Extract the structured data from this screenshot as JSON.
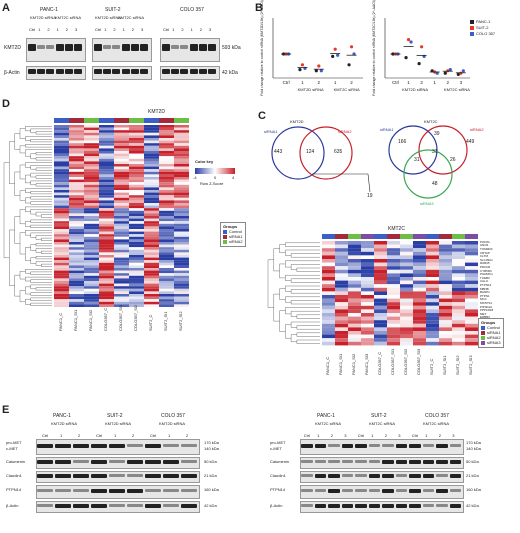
{
  "panels": {
    "A": {
      "letter": "A",
      "cell_lines": [
        "PANC-1",
        "SUIT-2",
        "COLO 357"
      ],
      "sirna_label": "KMT2D siRNA",
      "sirna_label2": "KMT2C siRNA",
      "lanes": [
        "Ctrl",
        "1",
        "2",
        "1",
        "2",
        "3"
      ],
      "row_labels": [
        "KMT2D",
        "β-Actin"
      ],
      "sizes": [
        "593 kDa",
        "42 kDa"
      ]
    },
    "B": {
      "letter": "B",
      "legend": [
        {
          "name": "PANC-1",
          "color": "#222222"
        },
        {
          "name": "SUIT-2",
          "color": "#e8382a"
        },
        {
          "name": "COLO 357",
          "color": "#3a5fc8"
        }
      ],
      "ylabel_left": "Fold change relative to control siRNA (KMT2D/18s) (2^-ΔΔCt)",
      "ylabel_right": "Fold change relative to control siRNA (KMT2C/18s) (2^-ΔΔCt)",
      "xticks_left": [
        "Ctrl",
        "1",
        "2",
        "1",
        "2"
      ],
      "xgroups_left": [
        "KMT2D siRNA",
        "KMT2C siRNA"
      ],
      "xticks_right": [
        "Ctrl",
        "1",
        "2",
        "1",
        "2",
        "3"
      ],
      "xgroups_right": [
        "KMT2D siRNA",
        "KMT2C siRNA"
      ]
    },
    "C": {
      "letter": "C",
      "venn_left": {
        "title": "KMT2D",
        "a": "siRNA1",
        "b": "siRNA2",
        "only_a": "443",
        "both": "124",
        "only_b": "635",
        "arrow_value": "19"
      },
      "venn_right": {
        "title": "KMT2C",
        "a": "siRNA1",
        "b": "siRNA2",
        "c": "siRNA3",
        "v1": "166",
        "v2": "39",
        "v3": "449",
        "v4": "31",
        "v5": "31",
        "v6": "26",
        "v7": "48"
      },
      "heatmap_title": "KMT2C",
      "genes": [
        "PODXL",
        "ANO6",
        "TOMM20",
        "CRTAP",
        "CLTM",
        "SLC39A1",
        "RAB45",
        "PDCD6",
        "CYB5R3",
        "PGRMC1",
        "TCEB3",
        "CALU",
        "PTPN14",
        "MBNB",
        "BANP1",
        "PTPN1",
        "MCC",
        "MSTPS1",
        "PIP4K2A",
        "PPP1R18",
        "MET",
        "ERBB3",
        "CTPS1",
        "MSN",
        "TMP1",
        "TRPS1",
        "RBP1",
        "PLOD1",
        "CKB"
      ],
      "groups_title": "Groups",
      "groups": [
        {
          "name": "Control",
          "color": "#3a5fc8"
        },
        {
          "name": "siRNA1",
          "color": "#a22a3a"
        },
        {
          "name": "siRNA2",
          "color": "#6cbe45"
        },
        {
          "name": "siRNA3",
          "color": "#7b4ea3"
        }
      ],
      "col_labels": [
        "PANC1_C",
        "PANC1_SI1",
        "PANC1_SI2",
        "PANC1_SI3",
        "COLO357_C",
        "COLO357_SI1",
        "COLO357_SI2",
        "COLO357_SI3",
        "SUIT2_C",
        "SUIT2_SI1",
        "SUIT2_SI2",
        "SUIT2_SI3"
      ]
    },
    "D": {
      "letter": "D",
      "heatmap_title": "KMT2D",
      "color_key_title": "Color key",
      "color_key_ticks": [
        "-4",
        "0",
        "4"
      ],
      "color_key_label": "Row Z-Score",
      "groups_title": "Groups",
      "groups": [
        {
          "name": "Control",
          "color": "#3a5fc8"
        },
        {
          "name": "siRNA1",
          "color": "#a22a3a"
        },
        {
          "name": "siRNA2",
          "color": "#6cbe45"
        }
      ],
      "col_labels": [
        "PANC1_C",
        "PANC1_SI1",
        "PANC1_SI2",
        "COLO357_C",
        "COLO357_SI1",
        "COLO357_SI2",
        "SUIT2_C",
        "SUIT2_SI1",
        "SUIT2_SI2"
      ]
    },
    "E": {
      "letter": "E",
      "left": {
        "cell_lines": [
          "PANC-1",
          "SUIT-2",
          "COLO 357"
        ],
        "sirna": [
          "KMT2D siRNA",
          "KMT2D siRNA",
          "KMT2D siRNA"
        ],
        "lanes": [
          "Ctrl",
          "1",
          "2",
          "Ctrl",
          "1",
          "2",
          "Ctrl",
          "1",
          "2"
        ],
        "rows": [
          "pro-MET",
          "c-MET",
          "Calumenin",
          "Claudin1",
          "PTPN14",
          "β-Actin"
        ],
        "sizes": [
          "170 kDa",
          "140 kDa",
          "50 kDa",
          "21 kDa",
          "160 kDa",
          "42 kDa"
        ]
      },
      "right": {
        "cell_lines": [
          "PANC-1",
          "SUIT-2",
          "COLO 357"
        ],
        "sirna": [
          "KMT2C siRNA",
          "KMT2C siRNA",
          "KMT2C siRNA"
        ],
        "lanes": [
          "Ctrl",
          "1",
          "2",
          "3",
          "Ctrl",
          "1",
          "2",
          "3",
          "Ctrl",
          "1",
          "2",
          "3"
        ],
        "rows": [
          "pro-MET",
          "c-MET",
          "Calumenin",
          "Claudin1",
          "PTPN14",
          "β-Actin"
        ],
        "sizes": [
          "170 kDa",
          "140 kDa",
          "50 kDa",
          "21 kDa",
          "160 kDa",
          "42 kDa"
        ]
      }
    }
  },
  "chart_data": [
    {
      "type": "scatter",
      "title": "",
      "xlabel": "",
      "ylabel": "Fold change relative to control siRNA (KMT2D/18s) (2^-ΔΔCt)",
      "categories": [
        "Ctrl",
        "KMT2D 1",
        "KMT2D 2",
        "KMT2C 1",
        "KMT2C 2"
      ],
      "ylim": [
        0,
        2.5
      ],
      "series": [
        {
          "name": "PANC-1",
          "values": [
            1.0,
            0.35,
            0.3,
            0.9,
            0.55
          ]
        },
        {
          "name": "SUIT-2",
          "values": [
            1.0,
            0.55,
            0.5,
            1.2,
            1.3
          ]
        },
        {
          "name": "COLO 357",
          "values": [
            1.0,
            0.4,
            0.3,
            0.95,
            1.0
          ]
        }
      ]
    },
    {
      "type": "scatter",
      "title": "",
      "xlabel": "",
      "ylabel": "Fold change relative to control siRNA (KMT2C/18s) (2^-ΔΔCt)",
      "categories": [
        "Ctrl",
        "KMT2D 1",
        "KMT2D 2",
        "KMT2C 1",
        "KMT2C 2",
        "KMT2C 3"
      ],
      "ylim": [
        0,
        2.5
      ],
      "series": [
        {
          "name": "PANC-1",
          "values": [
            1.0,
            0.85,
            0.6,
            0.3,
            0.2,
            0.15
          ]
        },
        {
          "name": "SUIT-2",
          "values": [
            1.0,
            1.6,
            1.3,
            0.25,
            0.3,
            0.2
          ]
        },
        {
          "name": "COLO 357",
          "values": [
            1.0,
            1.5,
            0.9,
            0.2,
            0.35,
            0.3
          ]
        }
      ]
    }
  ]
}
